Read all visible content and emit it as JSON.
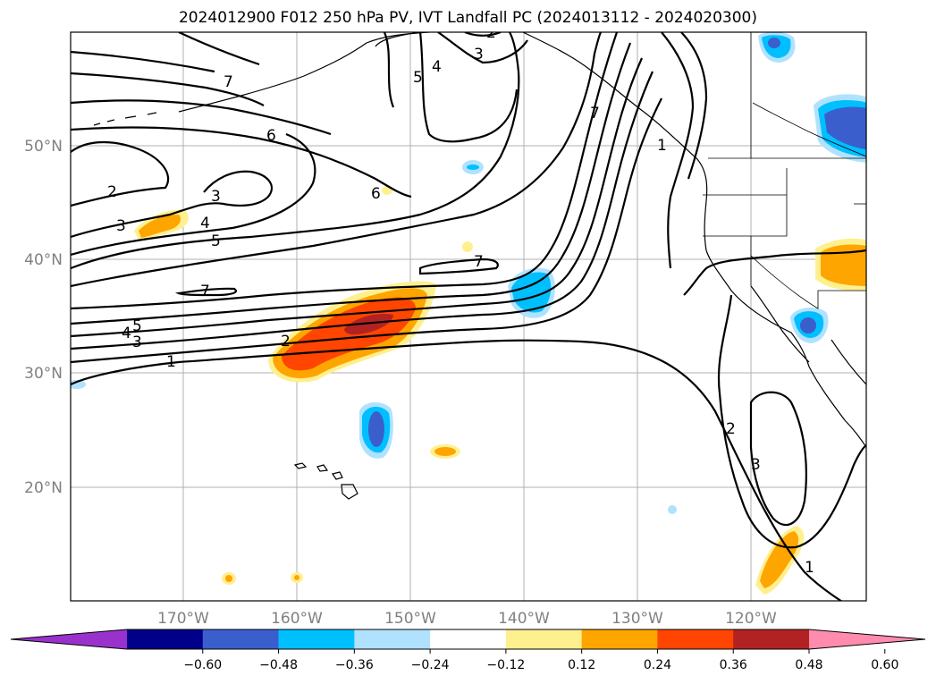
{
  "title": "2024012900 F012 250 hPa PV, IVT Landfall PC (2024013112 - 2024020300)",
  "lat_ticks": [
    "50°N",
    "40°N",
    "30°N",
    "20°N"
  ],
  "lon_ticks": [
    "170°W",
    "160°W",
    "150°W",
    "140°W",
    "130°W",
    "120°W"
  ],
  "colorbar": {
    "labels": [
      "−0.60",
      "−0.48",
      "−0.36",
      "−0.24",
      "−0.12",
      "0.12",
      "0.24",
      "0.36",
      "0.48",
      "0.60"
    ],
    "colors": [
      "#9932cc",
      "#00008b",
      "#3a5fcd",
      "#00bfff",
      "#b0e2ff",
      "#ffffff",
      "#fff08f",
      "#ffa500",
      "#ff4500",
      "#b22222",
      "#ff8caf"
    ]
  },
  "contour_labels": [
    "7",
    "6",
    "6",
    "2",
    "3",
    "3",
    "4",
    "5",
    "7",
    "7",
    "5",
    "4",
    "3",
    "2",
    "1",
    "3",
    "2",
    "5",
    "4",
    "7",
    "1",
    "2",
    "3",
    "1"
  ]
}
